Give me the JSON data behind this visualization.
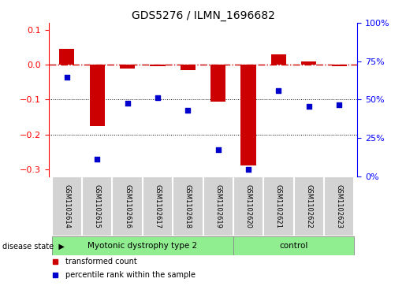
{
  "title": "GDS5276 / ILMN_1696682",
  "samples": [
    "GSM1102614",
    "GSM1102615",
    "GSM1102616",
    "GSM1102617",
    "GSM1102618",
    "GSM1102619",
    "GSM1102620",
    "GSM1102621",
    "GSM1102622",
    "GSM1102623"
  ],
  "red_bars": [
    0.045,
    -0.175,
    -0.01,
    -0.005,
    -0.015,
    -0.105,
    -0.29,
    0.03,
    0.01,
    -0.005
  ],
  "blue_dots": [
    -0.035,
    -0.27,
    -0.11,
    -0.095,
    -0.13,
    -0.245,
    -0.3,
    -0.075,
    -0.12,
    -0.115
  ],
  "ylim_left": [
    -0.32,
    0.12
  ],
  "ylim_right": [
    0,
    100
  ],
  "yticks_left": [
    0.1,
    0.0,
    -0.1,
    -0.2,
    -0.3
  ],
  "yticks_right": [
    100,
    75,
    50,
    25,
    0
  ],
  "groups": [
    {
      "label": "Myotonic dystrophy type 2",
      "start": 0,
      "end": 5
    },
    {
      "label": "control",
      "start": 6,
      "end": 9
    }
  ],
  "group_color": "#90EE90",
  "bar_color": "#CC0000",
  "dot_color": "#0000CC",
  "label_bg": "#D3D3D3",
  "legend_items": [
    {
      "color": "#CC0000",
      "label": "transformed count"
    },
    {
      "color": "#0000CC",
      "label": "percentile rank within the sample"
    }
  ]
}
